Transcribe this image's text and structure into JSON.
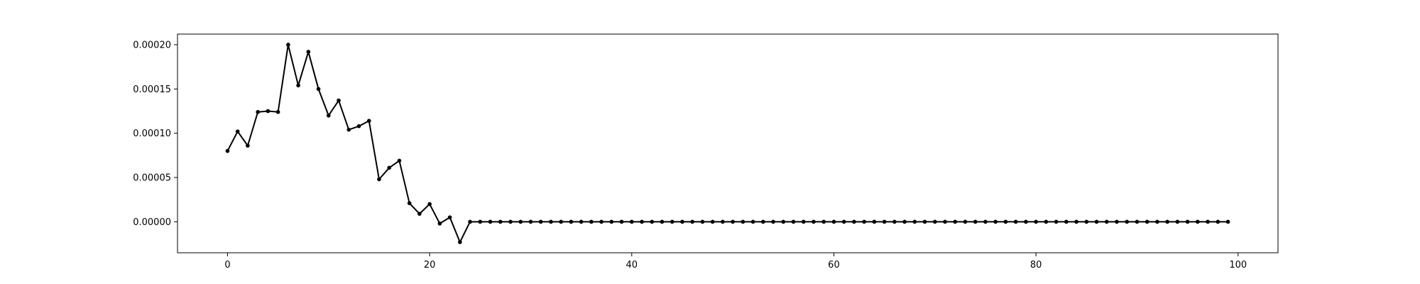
{
  "chart_data": {
    "type": "line",
    "title": "",
    "xlabel": "",
    "ylabel": "",
    "xlim": [
      -4.95,
      103.95
    ],
    "ylim": [
      -3.5e-05,
      0.000212
    ],
    "x_ticks": [
      0,
      20,
      40,
      60,
      80,
      100
    ],
    "x_tick_labels": [
      "0",
      "20",
      "40",
      "60",
      "80",
      "100"
    ],
    "y_ticks": [
      0.0,
      5e-05,
      0.0001,
      0.00015,
      0.0002
    ],
    "y_tick_labels": [
      "0.00000",
      "0.00005",
      "0.00010",
      "0.00015",
      "0.00020"
    ],
    "grid": false,
    "legend": "none",
    "series": [
      {
        "color": "#000000",
        "marker": "circle",
        "x": [
          0,
          1,
          2,
          3,
          4,
          5,
          6,
          7,
          8,
          9,
          10,
          11,
          12,
          13,
          14,
          15,
          16,
          17,
          18,
          19,
          20,
          21,
          22,
          23,
          24,
          25,
          26,
          27,
          28,
          29,
          30,
          31,
          32,
          33,
          34,
          35,
          36,
          37,
          38,
          39,
          40,
          41,
          42,
          43,
          44,
          45,
          46,
          47,
          48,
          49,
          50,
          51,
          52,
          53,
          54,
          55,
          56,
          57,
          58,
          59,
          60,
          61,
          62,
          63,
          64,
          65,
          66,
          67,
          68,
          69,
          70,
          71,
          72,
          73,
          74,
          75,
          76,
          77,
          78,
          79,
          80,
          81,
          82,
          83,
          84,
          85,
          86,
          87,
          88,
          89,
          90,
          91,
          92,
          93,
          94,
          95,
          96,
          97,
          98,
          99
        ],
        "values": [
          8e-05,
          0.000102,
          8.6e-05,
          0.000124,
          0.000125,
          0.000124,
          0.0002,
          0.000154,
          0.000192,
          0.00015,
          0.00012,
          0.000137,
          0.000104,
          0.000108,
          0.000114,
          4.8e-05,
          6.1e-05,
          6.9e-05,
          2.1e-05,
          9e-06,
          2e-05,
          -2e-06,
          5e-06,
          -2.3e-05,
          0,
          0,
          0,
          0,
          0,
          0,
          0,
          0,
          0,
          0,
          0,
          0,
          0,
          0,
          0,
          0,
          0,
          0,
          0,
          0,
          0,
          0,
          0,
          0,
          0,
          0,
          0,
          0,
          0,
          0,
          0,
          0,
          0,
          0,
          0,
          0,
          0,
          0,
          0,
          0,
          0,
          0,
          0,
          0,
          0,
          0,
          0,
          0,
          0,
          0,
          0,
          0,
          0,
          0,
          0,
          0,
          0,
          0,
          0,
          0,
          0,
          0,
          0,
          0,
          0,
          0,
          0,
          0,
          0,
          0,
          0,
          0,
          0,
          0,
          0,
          0
        ]
      }
    ]
  }
}
